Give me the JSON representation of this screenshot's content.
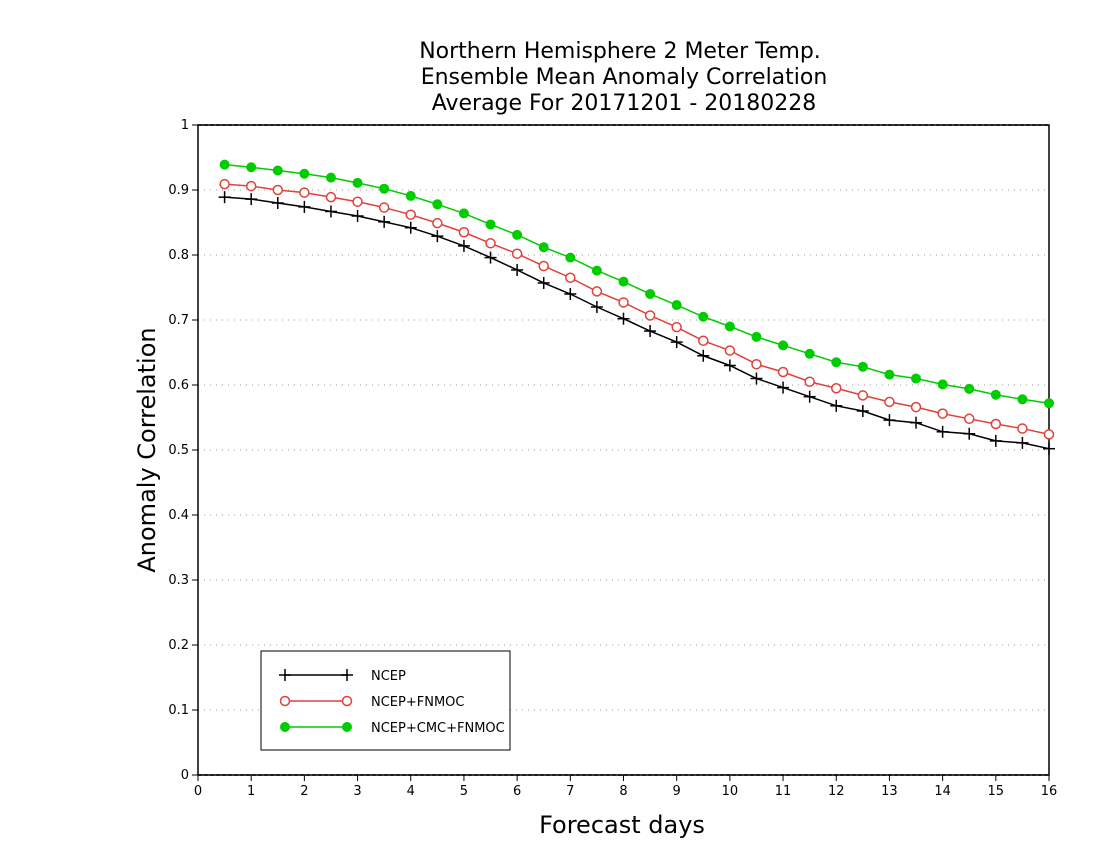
{
  "chart_data": {
    "type": "line",
    "title": [
      "Northern Hemisphere 2 Meter Temp.",
      "Ensemble Mean Anomaly Correlation",
      "Average For 20171201 - 20180228"
    ],
    "xlabel": "Forecast days",
    "ylabel": "Anomaly Correlation",
    "xlim": [
      0,
      16
    ],
    "ylim": [
      0,
      1
    ],
    "x_ticks": [
      0,
      1,
      2,
      3,
      4,
      5,
      6,
      7,
      8,
      9,
      10,
      11,
      12,
      13,
      14,
      15,
      16
    ],
    "y_ticks": [
      0,
      0.1,
      0.2,
      0.3,
      0.4,
      0.5,
      0.6,
      0.7,
      0.8,
      0.9,
      1
    ],
    "y_tick_labels": [
      "0",
      "0.1",
      "0.2",
      "0.3",
      "0.4",
      "0.5",
      "0.6",
      "0.7",
      "0.8",
      "0.9",
      "1"
    ],
    "grid": "horizontal dotted",
    "legend_position": "bottom-left",
    "x": [
      0.5,
      1,
      1.5,
      2,
      2.5,
      3,
      3.5,
      4,
      4.5,
      5,
      5.5,
      6,
      6.5,
      7,
      7.5,
      8,
      8.5,
      9,
      9.5,
      10,
      10.5,
      11,
      11.5,
      12,
      12.5,
      13,
      13.5,
      14,
      14.5,
      15,
      15.5,
      16
    ],
    "series": [
      {
        "name": "NCEP",
        "color": "#000000",
        "marker": "plus",
        "values": [
          0.889,
          0.886,
          0.88,
          0.874,
          0.867,
          0.86,
          0.851,
          0.842,
          0.829,
          0.814,
          0.796,
          0.777,
          0.757,
          0.74,
          0.72,
          0.702,
          0.683,
          0.666,
          0.645,
          0.63,
          0.61,
          0.596,
          0.582,
          0.568,
          0.56,
          0.546,
          0.542,
          0.528,
          0.525,
          0.514,
          0.511,
          0.502
        ]
      },
      {
        "name": "NCEP+FNMOC",
        "color": "#e0413a",
        "marker": "open-circle",
        "values": [
          0.909,
          0.906,
          0.9,
          0.896,
          0.889,
          0.882,
          0.873,
          0.862,
          0.849,
          0.835,
          0.818,
          0.802,
          0.783,
          0.765,
          0.744,
          0.727,
          0.707,
          0.689,
          0.668,
          0.653,
          0.632,
          0.62,
          0.605,
          0.595,
          0.584,
          0.574,
          0.566,
          0.556,
          0.548,
          0.54,
          0.533,
          0.524
        ]
      },
      {
        "name": "NCEP+CMC+FNMOC",
        "color": "#00cc00",
        "marker": "filled-circle",
        "values": [
          0.939,
          0.935,
          0.93,
          0.925,
          0.919,
          0.911,
          0.902,
          0.891,
          0.878,
          0.864,
          0.847,
          0.831,
          0.812,
          0.796,
          0.776,
          0.759,
          0.74,
          0.723,
          0.705,
          0.69,
          0.674,
          0.661,
          0.648,
          0.635,
          0.628,
          0.616,
          0.61,
          0.601,
          0.594,
          0.585,
          0.578,
          0.572
        ]
      }
    ]
  }
}
